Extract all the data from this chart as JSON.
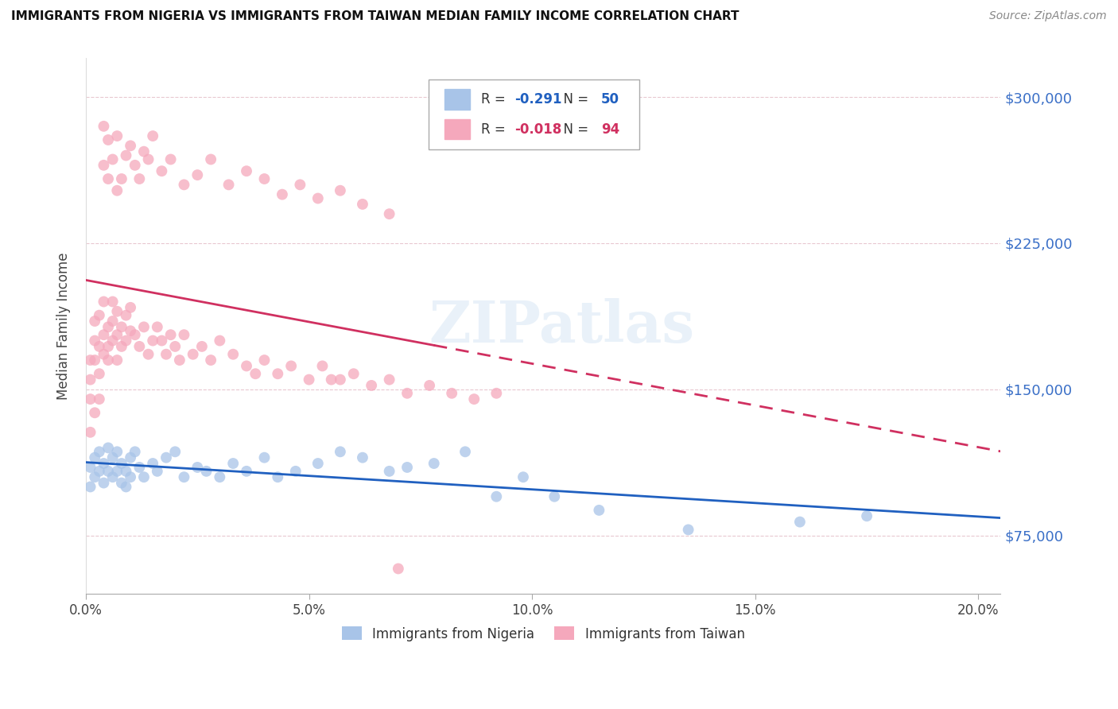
{
  "title": "IMMIGRANTS FROM NIGERIA VS IMMIGRANTS FROM TAIWAN MEDIAN FAMILY INCOME CORRELATION CHART",
  "source": "Source: ZipAtlas.com",
  "ylabel": "Median Family Income",
  "legend_label_1": "Immigrants from Nigeria",
  "legend_label_2": "Immigrants from Taiwan",
  "r1": -0.291,
  "n1": 50,
  "r2": -0.018,
  "n2": 94,
  "color_nigeria": "#a8c4e8",
  "color_taiwan": "#f5a8bc",
  "line_color_nigeria": "#2060c0",
  "line_color_taiwan": "#d03060",
  "watermark": "ZIPatlas",
  "xlim": [
    0.0,
    0.205
  ],
  "ylim": [
    45000,
    320000
  ],
  "yticks": [
    75000,
    150000,
    225000,
    300000
  ],
  "xticks": [
    0.0,
    0.05,
    0.1,
    0.15,
    0.2
  ],
  "xtick_labels": [
    "0.0%",
    "5.0%",
    "10.0%",
    "15.0%",
    "20.0%"
  ],
  "nigeria_x": [
    0.001,
    0.001,
    0.002,
    0.002,
    0.003,
    0.003,
    0.004,
    0.004,
    0.005,
    0.005,
    0.006,
    0.006,
    0.007,
    0.007,
    0.008,
    0.008,
    0.009,
    0.009,
    0.01,
    0.01,
    0.011,
    0.012,
    0.013,
    0.015,
    0.016,
    0.018,
    0.02,
    0.022,
    0.025,
    0.027,
    0.03,
    0.033,
    0.036,
    0.04,
    0.043,
    0.047,
    0.052,
    0.057,
    0.062,
    0.068,
    0.072,
    0.078,
    0.085,
    0.092,
    0.098,
    0.105,
    0.115,
    0.135,
    0.16,
    0.175
  ],
  "nigeria_y": [
    110000,
    100000,
    115000,
    105000,
    118000,
    108000,
    112000,
    102000,
    120000,
    108000,
    115000,
    105000,
    118000,
    108000,
    112000,
    102000,
    108000,
    100000,
    115000,
    105000,
    118000,
    110000,
    105000,
    112000,
    108000,
    115000,
    118000,
    105000,
    110000,
    108000,
    105000,
    112000,
    108000,
    115000,
    105000,
    108000,
    112000,
    118000,
    115000,
    108000,
    110000,
    112000,
    118000,
    95000,
    105000,
    95000,
    88000,
    78000,
    82000,
    85000
  ],
  "taiwan_x": [
    0.001,
    0.001,
    0.001,
    0.002,
    0.002,
    0.002,
    0.003,
    0.003,
    0.003,
    0.004,
    0.004,
    0.004,
    0.005,
    0.005,
    0.005,
    0.006,
    0.006,
    0.006,
    0.007,
    0.007,
    0.007,
    0.008,
    0.008,
    0.009,
    0.009,
    0.01,
    0.01,
    0.011,
    0.012,
    0.013,
    0.014,
    0.015,
    0.016,
    0.017,
    0.018,
    0.019,
    0.02,
    0.021,
    0.022,
    0.024,
    0.026,
    0.028,
    0.03,
    0.033,
    0.036,
    0.038,
    0.04,
    0.043,
    0.046,
    0.05,
    0.053,
    0.057,
    0.06,
    0.064,
    0.068,
    0.072,
    0.077,
    0.082,
    0.087,
    0.092,
    0.001,
    0.002,
    0.003,
    0.004,
    0.004,
    0.005,
    0.005,
    0.006,
    0.007,
    0.007,
    0.008,
    0.009,
    0.01,
    0.011,
    0.012,
    0.013,
    0.014,
    0.015,
    0.017,
    0.019,
    0.022,
    0.025,
    0.028,
    0.032,
    0.036,
    0.04,
    0.044,
    0.048,
    0.052,
    0.057,
    0.062,
    0.068,
    0.055,
    0.07
  ],
  "taiwan_y": [
    155000,
    165000,
    145000,
    175000,
    165000,
    185000,
    172000,
    158000,
    188000,
    168000,
    178000,
    195000,
    182000,
    172000,
    165000,
    195000,
    175000,
    185000,
    178000,
    165000,
    190000,
    172000,
    182000,
    175000,
    188000,
    180000,
    192000,
    178000,
    172000,
    182000,
    168000,
    175000,
    182000,
    175000,
    168000,
    178000,
    172000,
    165000,
    178000,
    168000,
    172000,
    165000,
    175000,
    168000,
    162000,
    158000,
    165000,
    158000,
    162000,
    155000,
    162000,
    155000,
    158000,
    152000,
    155000,
    148000,
    152000,
    148000,
    145000,
    148000,
    128000,
    138000,
    145000,
    285000,
    265000,
    278000,
    258000,
    268000,
    280000,
    252000,
    258000,
    270000,
    275000,
    265000,
    258000,
    272000,
    268000,
    280000,
    262000,
    268000,
    255000,
    260000,
    268000,
    255000,
    262000,
    258000,
    250000,
    255000,
    248000,
    252000,
    245000,
    240000,
    155000,
    58000
  ]
}
